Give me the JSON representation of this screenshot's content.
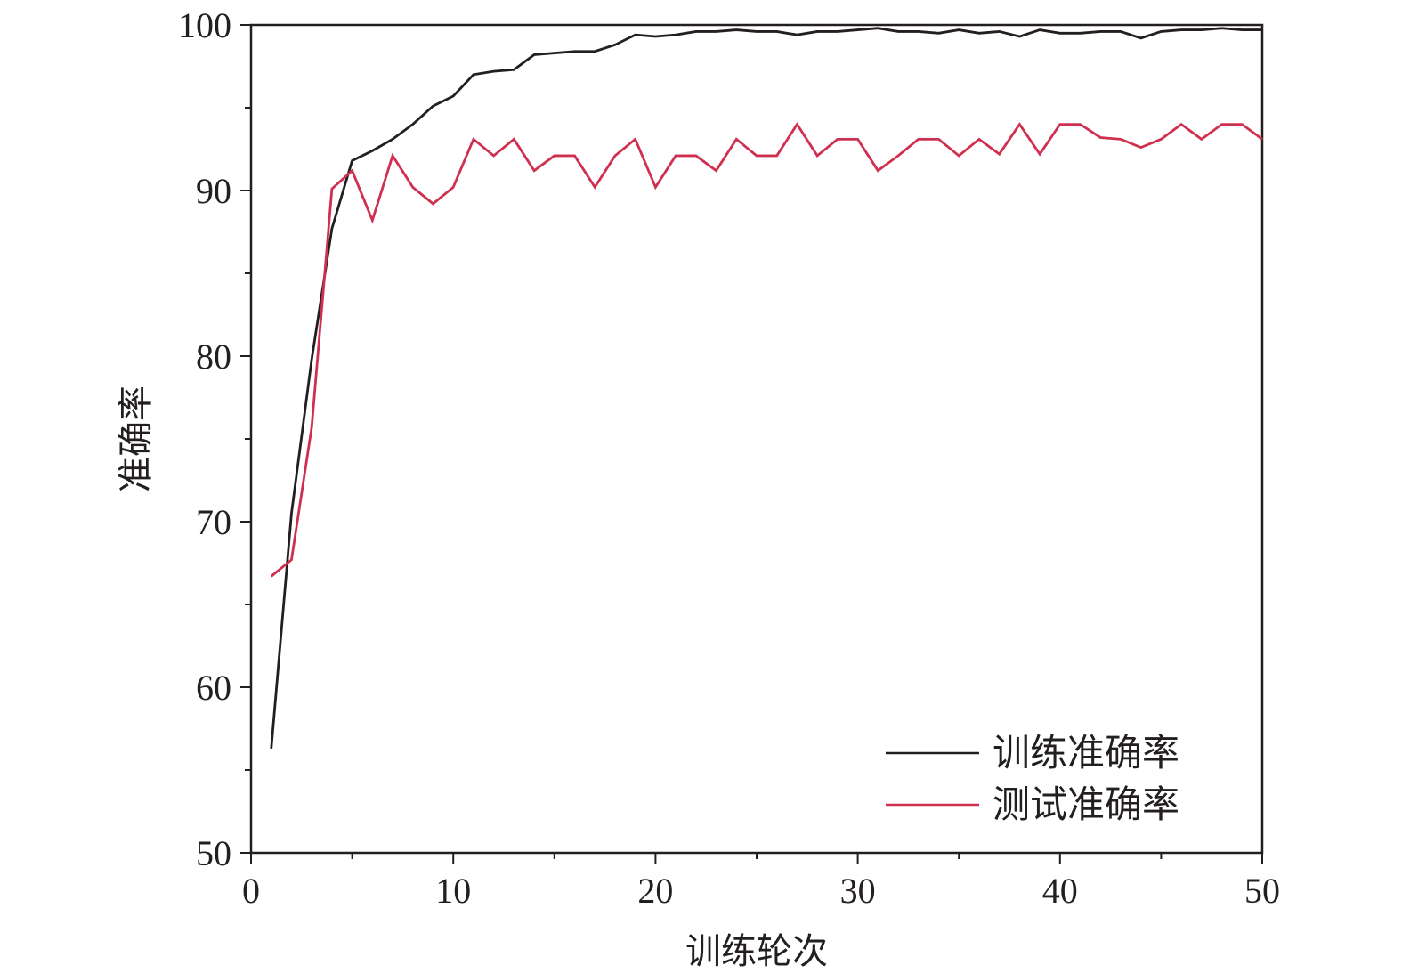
{
  "chart_data": {
    "type": "line",
    "xlabel": "训练轮次",
    "ylabel": "准确率",
    "xlim": [
      0,
      50
    ],
    "ylim": [
      50,
      100
    ],
    "x_ticks": [
      0,
      10,
      20,
      30,
      40,
      50
    ],
    "y_ticks": [
      50,
      60,
      70,
      80,
      90,
      100
    ],
    "x_minor_step": 5,
    "y_minor_step": 5,
    "grid": false,
    "legend_position": "bottom-right",
    "x": [
      1,
      2,
      3,
      4,
      5,
      6,
      7,
      8,
      9,
      10,
      11,
      12,
      13,
      14,
      15,
      16,
      17,
      18,
      19,
      20,
      21,
      22,
      23,
      24,
      25,
      26,
      27,
      28,
      29,
      30,
      31,
      32,
      33,
      34,
      35,
      36,
      37,
      38,
      39,
      40,
      41,
      42,
      43,
      44,
      45,
      46,
      47,
      48,
      49,
      50
    ],
    "series": [
      {
        "name": "训练准确率",
        "color": "#231f20",
        "values": [
          56.3,
          70.5,
          79.8,
          87.7,
          91.8,
          92.4,
          93.1,
          94.0,
          95.1,
          95.7,
          97.0,
          97.2,
          97.3,
          98.2,
          98.3,
          98.4,
          98.4,
          98.8,
          99.4,
          99.3,
          99.4,
          99.6,
          99.6,
          99.7,
          99.6,
          99.6,
          99.4,
          99.6,
          99.6,
          99.7,
          99.8,
          99.6,
          99.6,
          99.5,
          99.7,
          99.5,
          99.6,
          99.3,
          99.7,
          99.5,
          99.5,
          99.6,
          99.6,
          99.2,
          99.6,
          99.7,
          99.7,
          99.8,
          99.7,
          99.7
        ]
      },
      {
        "name": "测试准确率",
        "color": "#d03050",
        "values": [
          66.7,
          67.7,
          75.7,
          90.1,
          91.2,
          88.2,
          92.1,
          90.2,
          89.2,
          90.2,
          93.1,
          92.1,
          93.1,
          91.2,
          92.1,
          92.1,
          90.2,
          92.1,
          93.1,
          90.2,
          92.1,
          92.1,
          91.2,
          93.1,
          92.1,
          92.1,
          94.0,
          92.1,
          93.1,
          93.1,
          91.2,
          92.1,
          93.1,
          93.1,
          92.1,
          93.1,
          92.2,
          94.0,
          92.2,
          94.0,
          94.0,
          93.2,
          93.1,
          92.6,
          93.1,
          94.0,
          93.1,
          94.0,
          94.0,
          93.1
        ]
      }
    ]
  }
}
